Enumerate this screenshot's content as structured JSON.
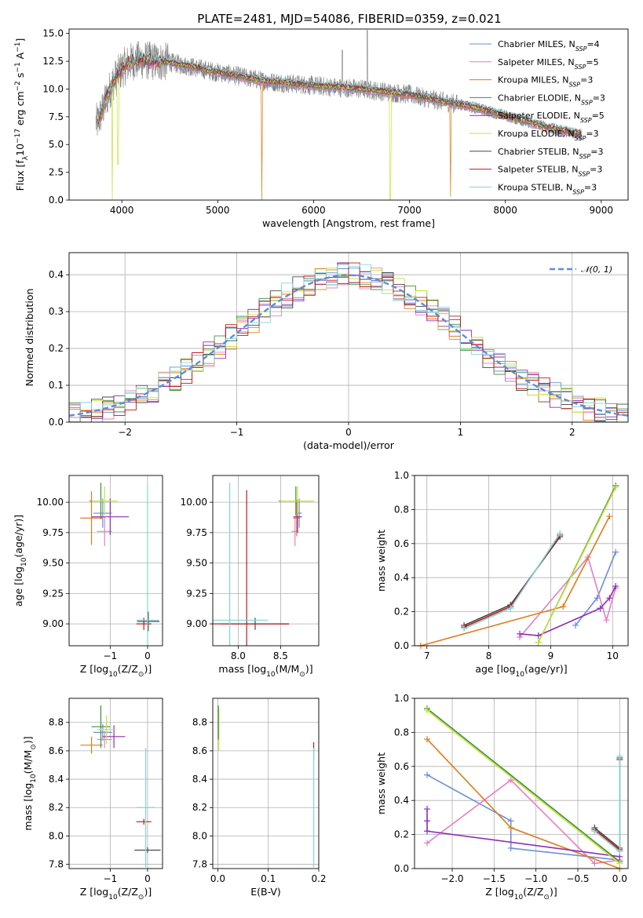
{
  "title": "PLATE=2481, MJD=54086, FIBERID=0359, z=0.021",
  "colors": {
    "Chabrier MILES": "#6a8fd8",
    "Salpeter MILES": "#e67fbf",
    "Kroupa MILES": "#e07b1a",
    "Chabrier ELODIE": "#3c8f3c",
    "Salpeter ELODIE": "#8e2fb3",
    "Kroupa ELODIE": "#c7e23a",
    "Chabrier STELIB": "#4a4a4a",
    "Salpeter STELIB": "#c01818",
    "Kroupa STELIB": "#7fd6da",
    "spectrum": "#808080",
    "gauss": "#5b8ddc"
  },
  "chart_data": [
    {
      "type": "line",
      "id": "spectrum",
      "xlabel": "wavelength [Angstrom, rest frame]",
      "ylabel_parts": [
        "Flux [f",
        "λ",
        "10",
        "−17",
        " erg cm",
        "−2",
        " s",
        "−1",
        " A",
        "−1",
        "]"
      ],
      "xlim": [
        3450,
        9280
      ],
      "ylim": [
        0,
        15.4
      ],
      "xticks": [
        4000,
        5000,
        6000,
        7000,
        8000,
        9000
      ],
      "yticks": [
        0.0,
        2.5,
        5.0,
        7.5,
        10.0,
        12.5,
        15.0
      ],
      "grid": false,
      "legend_position": "top-right",
      "legend": [
        {
          "name": "Chabrier MILES",
          "nssp": "4"
        },
        {
          "name": "Salpeter MILES",
          "nssp": "5"
        },
        {
          "name": "Kroupa MILES",
          "nssp": "3"
        },
        {
          "name": "Chabrier ELODIE",
          "nssp": "3"
        },
        {
          "name": "Salpeter ELODIE",
          "nssp": "5"
        },
        {
          "name": "Kroupa ELODIE",
          "nssp": "3"
        },
        {
          "name": "Chabrier STELIB",
          "nssp": "3"
        },
        {
          "name": "Salpeter STELIB",
          "nssp": "3"
        },
        {
          "name": "Kroupa STELIB",
          "nssp": "3"
        }
      ],
      "continuum": {
        "x": [
          3750,
          3900,
          4000,
          4100,
          4200,
          4500,
          5000,
          5500,
          6000,
          6500,
          7000,
          7400,
          7600,
          8000,
          8500,
          8800
        ],
        "y": [
          7.0,
          10.5,
          11.8,
          12.5,
          12.6,
          12.4,
          11.5,
          10.7,
          10.3,
          10.0,
          9.5,
          8.8,
          8.5,
          7.6,
          6.4,
          5.9
        ]
      },
      "dips": [
        {
          "x": 3900,
          "y": 0.0,
          "series": "Kroupa ELODIE"
        },
        {
          "x": 3960,
          "y": 3.2,
          "series": "Kroupa ELODIE"
        },
        {
          "x": 5460,
          "y": 0.0,
          "series": "Kroupa MILES"
        },
        {
          "x": 6800,
          "y": 0.0,
          "series": "Kroupa ELODIE"
        },
        {
          "x": 7430,
          "y": 0.3,
          "series": "Kroupa MILES"
        }
      ]
    },
    {
      "type": "line",
      "id": "residuals",
      "xlabel": "(data-model)/error",
      "ylabel": "Normed distribution",
      "xlim": [
        -2.5,
        2.5
      ],
      "ylim": [
        0,
        0.46
      ],
      "xticks": [
        -2,
        -1,
        0,
        1,
        2
      ],
      "yticks": [
        0.0,
        0.1,
        0.2,
        0.3,
        0.4
      ],
      "grid": true,
      "legend_position": "top-right",
      "legend": [
        {
          "name": "𝒩(0, 1)"
        }
      ],
      "bin_width": 0.1,
      "gaussian": {
        "mean": 0,
        "sigma": 1
      }
    },
    {
      "type": "scatter",
      "id": "age-vs-Z",
      "xlabel_parts": [
        "Z [log",
        "10",
        "(Z/Z",
        "⊙",
        ")]"
      ],
      "ylabel_parts": [
        "age  [log",
        "10",
        "(age/yr)]"
      ],
      "xlim": [
        -2.1,
        0.4
      ],
      "ylim": [
        8.82,
        10.22
      ],
      "xticks": [
        -1,
        0
      ],
      "yticks": [
        9.0,
        9.25,
        9.5,
        9.75,
        10.0
      ],
      "grid": true,
      "points": [
        {
          "series": "Chabrier MILES",
          "x": -1.2,
          "y": 9.91,
          "xerr": 0.25,
          "yerr": 0.12
        },
        {
          "series": "Salpeter MILES",
          "x": -1.15,
          "y": 9.76,
          "xerr": 0.2,
          "yerr": 0.12
        },
        {
          "series": "Kroupa MILES",
          "x": -1.5,
          "y": 9.87,
          "xerr": 0.3,
          "yerr": 0.22
        },
        {
          "series": "Chabrier ELODIE",
          "x": -1.25,
          "y": 10.01,
          "xerr": 0.3,
          "yerr": 0.15
        },
        {
          "series": "Salpeter ELODIE",
          "x": -1.0,
          "y": 9.88,
          "xerr": 0.5,
          "yerr": 0.15
        },
        {
          "series": "Kroupa ELODIE",
          "x": -1.15,
          "y": 10.01,
          "xerr": 0.35,
          "yerr": 0.12
        },
        {
          "series": "Chabrier STELIB",
          "x": 0.02,
          "y": 9.02,
          "xerr": 0.3,
          "yerr": 0.08
        },
        {
          "series": "Salpeter STELIB",
          "x": -0.1,
          "y": 9.0,
          "xerr": 0.2,
          "yerr": 0.05
        },
        {
          "series": "Kroupa STELIB",
          "x": 0.0,
          "y": 9.03,
          "xerr": 0.3,
          "yerr": 1.12
        }
      ]
    },
    {
      "type": "scatter",
      "id": "age-vs-mass",
      "xlabel_parts": [
        "mass [log",
        "10",
        "(M/M",
        "⊙",
        ")]"
      ],
      "ylabel": "",
      "xlim": [
        7.7,
        8.95
      ],
      "ylim": [
        8.82,
        10.22
      ],
      "xticks": [
        8.0,
        8.5
      ],
      "yticks": [
        9.0,
        9.25,
        9.5,
        9.75,
        10.0
      ],
      "grid": true,
      "points": [
        {
          "series": "Chabrier MILES",
          "x": 8.72,
          "y": 9.91,
          "xerr": 0.03,
          "yerr": 0.12
        },
        {
          "series": "Salpeter MILES",
          "x": 8.67,
          "y": 9.76,
          "xerr": 0.04,
          "yerr": 0.12
        },
        {
          "series": "Kroupa MILES",
          "x": 8.69,
          "y": 9.87,
          "xerr": 0.04,
          "yerr": 0.15
        },
        {
          "series": "Chabrier ELODIE",
          "x": 8.68,
          "y": 10.01,
          "xerr": 0.2,
          "yerr": 0.12
        },
        {
          "series": "Salpeter ELODIE",
          "x": 8.7,
          "y": 9.88,
          "xerr": 0.05,
          "yerr": 0.13
        },
        {
          "series": "Kroupa ELODIE",
          "x": 8.7,
          "y": 10.01,
          "xerr": 0.2,
          "yerr": 0.12
        },
        {
          "series": "Chabrier STELIB",
          "x": 8.2,
          "y": 9.0,
          "xerr": 0.4,
          "yerr": 0.05
        },
        {
          "series": "Salpeter STELIB",
          "x": 8.1,
          "y": 9.0,
          "xerr": 0.5,
          "yerr": 1.1
        },
        {
          "series": "Kroupa STELIB",
          "x": 7.9,
          "y": 9.03,
          "xerr": 0.45,
          "yerr": 1.13
        }
      ]
    },
    {
      "type": "line",
      "id": "massweight-vs-age",
      "xlabel_parts": [
        "age  [log",
        "10",
        "(age/yr)]"
      ],
      "ylabel": "mass weight",
      "xlim": [
        6.8,
        10.25
      ],
      "ylim": [
        0,
        1.0
      ],
      "xticks": [
        7,
        8,
        9,
        10
      ],
      "yticks": [
        0.0,
        0.2,
        0.4,
        0.6,
        0.8,
        1.0
      ],
      "grid": true,
      "series": [
        {
          "name": "Chabrier MILES",
          "x": [
            9.4,
            9.75,
            10.05
          ],
          "y": [
            0.12,
            0.28,
            0.55
          ]
        },
        {
          "name": "Salpeter MILES",
          "x": [
            8.5,
            9.6,
            9.9,
            10.05
          ],
          "y": [
            0.05,
            0.52,
            0.15,
            0.34
          ]
        },
        {
          "name": "Kroupa MILES",
          "x": [
            6.9,
            9.2,
            9.95
          ],
          "y": [
            0.0,
            0.23,
            0.76
          ]
        },
        {
          "name": "Chabrier ELODIE",
          "x": [
            8.8,
            10.05
          ],
          "y": [
            0.02,
            0.94
          ]
        },
        {
          "name": "Salpeter ELODIE",
          "x": [
            8.5,
            8.8,
            9.8,
            9.95,
            10.05
          ],
          "y": [
            0.07,
            0.06,
            0.22,
            0.28,
            0.35
          ]
        },
        {
          "name": "Kroupa ELODIE",
          "x": [
            8.8,
            10.05
          ],
          "y": [
            0.02,
            0.93
          ]
        },
        {
          "name": "Chabrier STELIB",
          "x": [
            7.6,
            8.35,
            9.15
          ],
          "y": [
            0.12,
            0.24,
            0.64
          ]
        },
        {
          "name": "Salpeter STELIB",
          "x": [
            7.6,
            8.35,
            9.15
          ],
          "y": [
            0.11,
            0.23,
            0.65
          ]
        },
        {
          "name": "Kroupa STELIB",
          "x": [
            7.6,
            8.35,
            9.15
          ],
          "y": [
            0.1,
            0.22,
            0.66
          ]
        }
      ]
    },
    {
      "type": "scatter",
      "id": "mass-vs-Z",
      "xlabel_parts": [
        "Z [log",
        "10",
        "(Z/Z",
        "⊙",
        ")]"
      ],
      "ylabel_parts": [
        "mass [log",
        "10",
        "(M/M",
        "⊙",
        ")]"
      ],
      "xlim": [
        -2.1,
        0.4
      ],
      "ylim": [
        7.77,
        8.97
      ],
      "xticks": [
        -1,
        0
      ],
      "yticks": [
        7.8,
        8.0,
        8.2,
        8.4,
        8.6,
        8.8
      ],
      "grid": true,
      "points": [
        {
          "series": "Chabrier MILES",
          "x": -1.2,
          "y": 8.73,
          "xerr": 0.25,
          "yerr": 0.06
        },
        {
          "series": "Salpeter MILES",
          "x": -1.15,
          "y": 8.68,
          "xerr": 0.2,
          "yerr": 0.06
        },
        {
          "series": "Kroupa MILES",
          "x": -1.5,
          "y": 8.64,
          "xerr": 0.3,
          "yerr": 0.06
        },
        {
          "series": "Chabrier ELODIE",
          "x": -1.25,
          "y": 8.77,
          "xerr": 0.25,
          "yerr": 0.15
        },
        {
          "series": "Salpeter ELODIE",
          "x": -0.9,
          "y": 8.7,
          "xerr": 0.3,
          "yerr": 0.08
        },
        {
          "series": "Kroupa ELODIE",
          "x": -1.1,
          "y": 8.75,
          "xerr": 0.25,
          "yerr": 0.1
        },
        {
          "series": "Chabrier STELIB",
          "x": 0.0,
          "y": 7.9,
          "xerr": 0.35,
          "yerr": 0.02
        },
        {
          "series": "Salpeter STELIB",
          "x": -0.1,
          "y": 8.1,
          "xerr": 0.2,
          "yerr": 0.02
        },
        {
          "series": "Kroupa STELIB",
          "x": -0.05,
          "y": 8.2,
          "xerr": 0.25,
          "yerr": 0.42
        }
      ]
    },
    {
      "type": "scatter",
      "id": "mass-vs-EBV",
      "xlabel": "E(B-V)",
      "ylabel": "",
      "xlim": [
        -0.01,
        0.2
      ],
      "ylim": [
        7.77,
        8.97
      ],
      "xticks": [
        0.0,
        0.1,
        0.2
      ],
      "yticks": [
        7.8,
        8.0,
        8.2,
        8.4,
        8.6,
        8.8
      ],
      "grid": true,
      "points": [
        {
          "series": "Kroupa ELODIE",
          "x": 0.002,
          "y": 8.75,
          "xerr": 0.0,
          "yerr": 0.15
        },
        {
          "series": "Chabrier ELODIE",
          "x": 0.001,
          "y": 8.8,
          "xerr": 0.0,
          "yerr": 0.12
        },
        {
          "series": "Salpeter STELIB",
          "x": 0.19,
          "y": 8.6,
          "xerr": 0.0,
          "yerr": 0.06
        },
        {
          "series": "Kroupa STELIB",
          "x": 0.19,
          "y": 8.2,
          "xerr": 0.0,
          "yerr": 0.42
        }
      ]
    },
    {
      "type": "line",
      "id": "massweight-vs-Z",
      "xlabel_parts": [
        "Z [log",
        "10",
        "(Z/Z",
        "⊙",
        ")]"
      ],
      "ylabel": "mass weight",
      "xlim": [
        -2.45,
        0.1
      ],
      "ylim": [
        0,
        1.0
      ],
      "xticks": [
        -2.0,
        -1.5,
        -1.0,
        -0.5,
        0.0
      ],
      "yticks": [
        0.0,
        0.2,
        0.4,
        0.6,
        0.8,
        1.0
      ],
      "grid": true,
      "series": [
        {
          "name": "Chabrier MILES",
          "x": [
            -2.3,
            -1.3,
            -1.3,
            0.0
          ],
          "y": [
            0.55,
            0.28,
            0.12,
            0.05
          ]
        },
        {
          "name": "Salpeter MILES",
          "x": [
            -2.3,
            -1.3,
            -0.3,
            0.0
          ],
          "y": [
            0.15,
            0.52,
            0.03,
            0.05
          ]
        },
        {
          "name": "Kroupa MILES",
          "x": [
            -2.3,
            -1.3,
            0.0
          ],
          "y": [
            0.76,
            0.24,
            0.0
          ]
        },
        {
          "name": "Chabrier ELODIE",
          "x": [
            -2.3,
            0.0
          ],
          "y": [
            0.94,
            0.04
          ]
        },
        {
          "name": "Salpeter ELODIE",
          "x": [
            -2.3,
            -2.3,
            -2.3,
            0.0
          ],
          "y": [
            0.35,
            0.28,
            0.22,
            0.07
          ]
        },
        {
          "name": "Kroupa ELODIE",
          "x": [
            -2.3,
            0.0
          ],
          "y": [
            0.93,
            0.03
          ]
        },
        {
          "name": "Chabrier STELIB",
          "x": [
            -0.3,
            0.0,
            0.0
          ],
          "y": [
            0.24,
            0.12,
            0.64
          ]
        },
        {
          "name": "Salpeter STELIB",
          "x": [
            -0.3,
            0.0,
            0.0
          ],
          "y": [
            0.23,
            0.11,
            0.65
          ]
        },
        {
          "name": "Kroupa STELIB",
          "x": [
            -0.3,
            0.0,
            0.0
          ],
          "y": [
            0.22,
            0.1,
            0.66
          ]
        }
      ]
    }
  ]
}
